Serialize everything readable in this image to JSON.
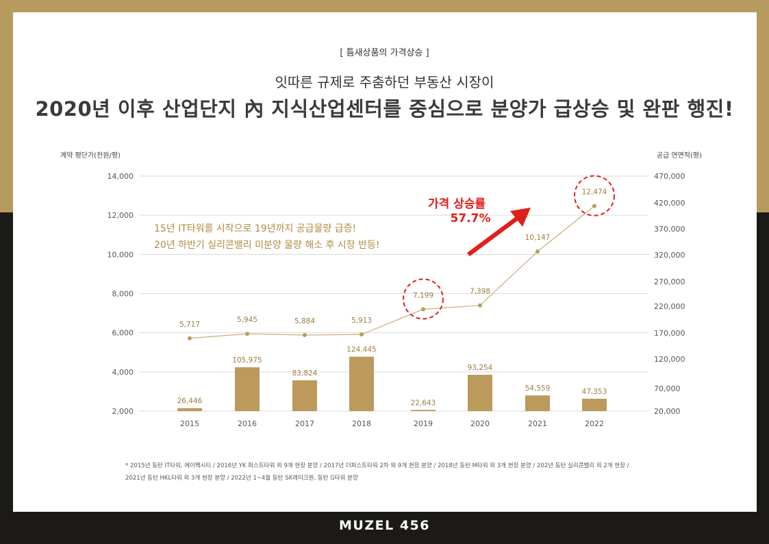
{
  "header": {
    "kicker": "[   틈새상품의 가격상승   ]",
    "subtitle": "잇따른 규제로 주춤하던 부동산 시장이",
    "headline": "2020년 이후 산업단지 內 지식산업센터를 중심으로 분양가 급상승 및 완판 행진!"
  },
  "chart_data": {
    "type": "bar",
    "categories": [
      "2015",
      "2016",
      "2017",
      "2018",
      "2019",
      "2020",
      "2021",
      "2022"
    ],
    "y_left_label": "계약 평단가(천원/평)",
    "y_right_label": "공급 연면적(평)",
    "y_left_ticks": [
      "14,000",
      "12,000",
      "10,000",
      "8,000",
      "6,000",
      "4,000",
      "2,000"
    ],
    "y_right_ticks": [
      "470,000",
      "420,000",
      "370,000",
      "320,000",
      "270,000",
      "220,000",
      "170,000",
      "120,000",
      "70,000",
      "20,000"
    ],
    "y_left_range": [
      2000,
      14000
    ],
    "series": [
      {
        "type": "bar",
        "axis": "right",
        "values": [
          26446,
          105975,
          83824,
          124445,
          22643,
          93254,
          54559,
          47353
        ],
        "labels": [
          "26,446",
          "105,975",
          "83,824",
          "124,445",
          "22,643",
          "93,254",
          "54,559",
          "47,353"
        ]
      },
      {
        "type": "line",
        "axis": "left",
        "values": [
          5717,
          5945,
          5884,
          5913,
          7199,
          7398,
          10147,
          12474
        ],
        "labels": [
          "5,717",
          "5,945",
          "5,884",
          "5,913",
          "7,199",
          "7,398",
          "10,147",
          "12,474"
        ]
      }
    ],
    "highlighted_categories": [
      "2019",
      "2022"
    ],
    "annotation_lines": [
      "15년  IT타워를 시작으로 19년까지 공급물량 급증!",
      "20년 하반기 실리콘밸리 미분양 물량 해소 후 시장 반등!"
    ],
    "rise_label": "가격 상승률",
    "rise_value": "57.7%",
    "grid": true
  },
  "footnote": {
    "line1": "* 2015년 동탄 IT타워, 에이팩시티 / 2016년 YK 퍼스트타워 외 9개 현장 분양 / 2017년 더퍼스트타워 2차 외 9개 현장 분양 / 2018년 동탄 M타워 외 3개 현장 분양 / 202년 동탄 실리콘밸리 외 2개 현장 /",
    "line2": "2021년 동탄 HKL타워 외 3개 현장 분양 / 2022년 1~4월 동탄 SK레이크원, 동탄 G타워 분양"
  },
  "brand": "MUZEL 456",
  "colors": {
    "gold": "#b79a5e",
    "bar": "#bb9a5c",
    "line": "#c9ad7a",
    "highlight_red": "#e0201a",
    "dark": "#1c1a16"
  }
}
